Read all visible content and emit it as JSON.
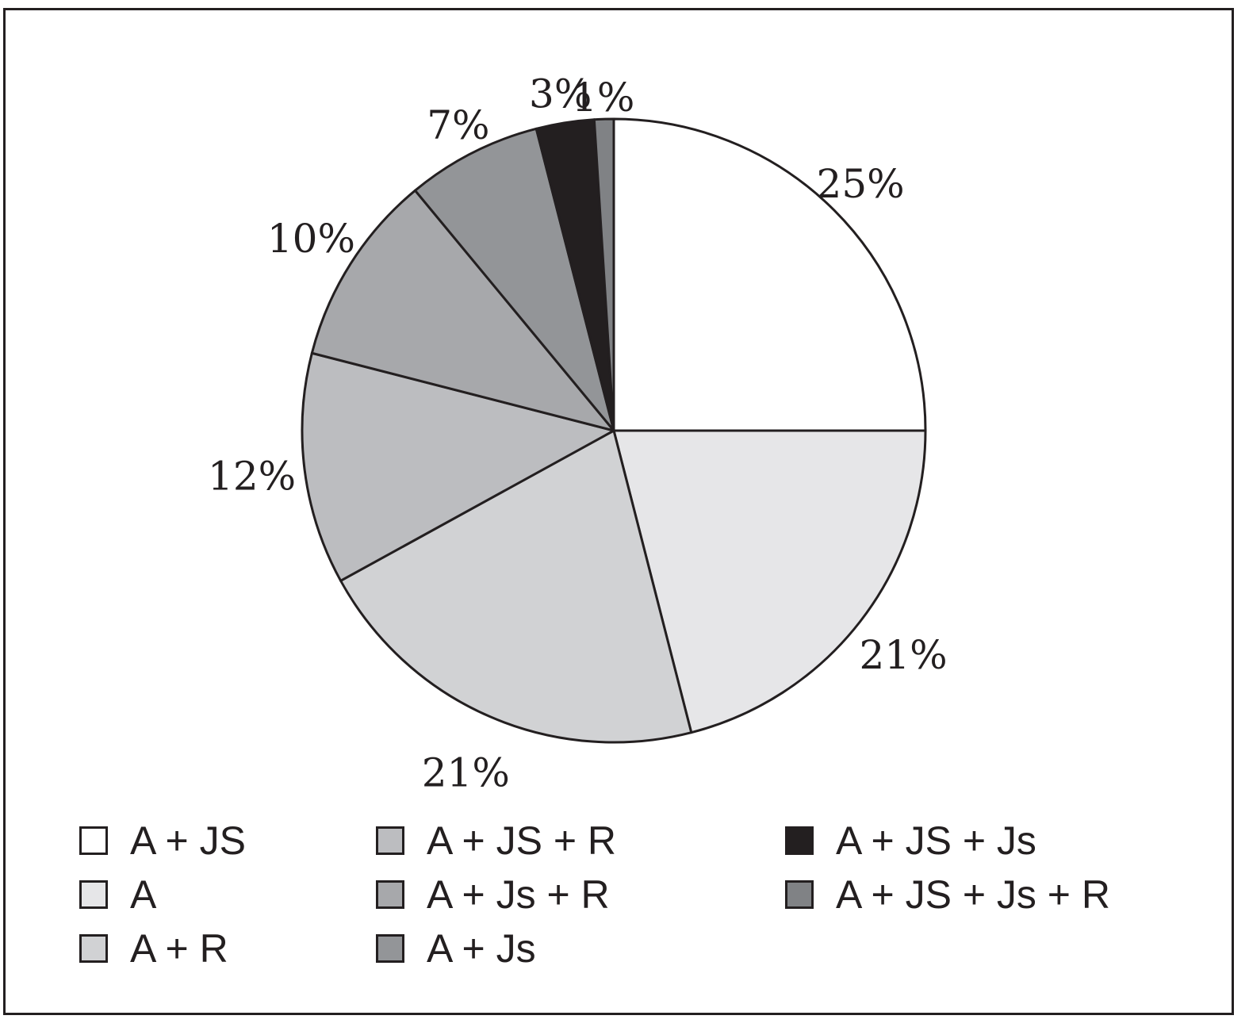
{
  "chart_data": {
    "type": "pie",
    "slices": [
      {
        "label": "A + JS",
        "value": 25,
        "value_label": "25%",
        "color": "#ffffff"
      },
      {
        "label": "A",
        "value": 21,
        "value_label": "21%",
        "color": "#e6e6e8"
      },
      {
        "label": "A + R",
        "value": 21,
        "value_label": "21%",
        "color": "#d1d2d4"
      },
      {
        "label": "A + JS + R",
        "value": 12,
        "value_label": "12%",
        "color": "#bcbdc0"
      },
      {
        "label": "A + Js + R",
        "value": 10,
        "value_label": "10%",
        "color": "#a7a8ab"
      },
      {
        "label": "A + Js",
        "value": 7,
        "value_label": "7%",
        "color": "#939598"
      },
      {
        "label": "A + JS + Js",
        "value": 3,
        "value_label": "3%",
        "color": "#231f20"
      },
      {
        "label": "A + JS + Js + R",
        "value": 1,
        "value_label": "1%",
        "color": "#808285"
      }
    ],
    "start_angle": "12 o'clock",
    "direction": "clockwise",
    "legend": {
      "placement": "bottom",
      "columns": [
        [
          "A + JS",
          "A",
          "A + R"
        ],
        [
          "A + JS + R",
          "A + Js + R",
          "A + Js"
        ],
        [
          "A + JS + Js",
          "A + JS + Js + R"
        ]
      ]
    }
  }
}
